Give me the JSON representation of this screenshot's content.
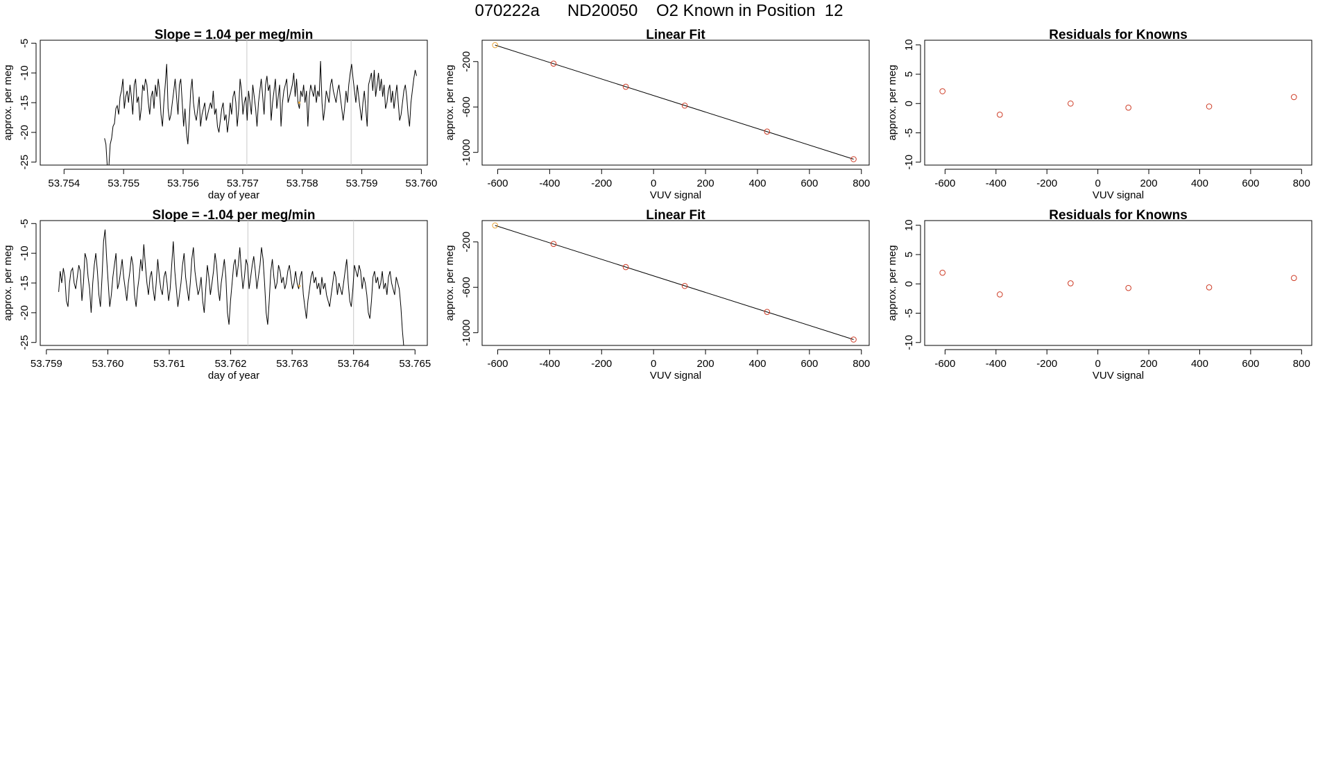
{
  "figure": {
    "title": "070222a      ND20050    O2 Known in Position  12"
  },
  "colors": {
    "line": "#000000",
    "box": "#000000",
    "marker": "#cd3a24",
    "first_marker": "#e8a33a",
    "vline": "#c8c8c8",
    "dot": "#f0b040"
  },
  "chart_data": [
    {
      "id": "ts1",
      "type": "line",
      "title": "Slope =  1.04  per meg/min",
      "xlabel": "day of year",
      "ylabel": "approx. per meg",
      "xlim": [
        53.7536,
        53.7601
      ],
      "ylim": [
        -25.5,
        -4.5
      ],
      "xticks": [
        53.754,
        53.755,
        53.756,
        53.757,
        53.758,
        53.759,
        53.76
      ],
      "xtick_labels": [
        "53.754",
        "53.755",
        "53.756",
        "53.757",
        "53.758",
        "53.759",
        "53.760"
      ],
      "yticks": [
        -5,
        -10,
        -15,
        -20,
        -25
      ],
      "ytick_labels": [
        "-5",
        "-10",
        "-15",
        "-20",
        "-25"
      ],
      "vlines": [
        53.75707,
        53.75882
      ],
      "highlight_point": [
        53.75795,
        -15
      ],
      "series": [
        {
          "name": "trace",
          "x_start": 53.75468,
          "x_end": 53.75992,
          "values": [
            -21,
            -22,
            -26,
            -26,
            -22,
            -21,
            -19,
            -18.5,
            -16,
            -15.5,
            -17,
            -14,
            -13,
            -11,
            -16,
            -14,
            -13,
            -15,
            -12,
            -14,
            -17,
            -12,
            -11,
            -15,
            -14,
            -18,
            -16,
            -12,
            -13,
            -11,
            -12,
            -15,
            -17,
            -14,
            -13,
            -16,
            -12,
            -14,
            -11,
            -13,
            -17,
            -19,
            -15,
            -12,
            -8.5,
            -16,
            -18,
            -17,
            -15,
            -13,
            -11,
            -14,
            -17,
            -12,
            -11,
            -15,
            -19,
            -16,
            -20,
            -22,
            -18,
            -13,
            -11,
            -15,
            -17,
            -18,
            -16,
            -14,
            -19,
            -17,
            -16,
            -15,
            -18,
            -17,
            -16,
            -15,
            -16,
            -13,
            -17,
            -16,
            -19,
            -20,
            -18,
            -16,
            -15,
            -18,
            -17,
            -20,
            -18,
            -15,
            -17,
            -14,
            -13,
            -15,
            -19,
            -16,
            -11,
            -13,
            -17,
            -15,
            -14,
            -18,
            -13,
            -15,
            -17,
            -12,
            -14,
            -16,
            -19,
            -15,
            -13,
            -11,
            -14,
            -17,
            -12,
            -10.5,
            -13,
            -12,
            -18,
            -15,
            -13,
            -11,
            -16,
            -14,
            -12,
            -19,
            -15,
            -13,
            -12,
            -11,
            -15,
            -14,
            -13,
            -12,
            -10,
            -14,
            -11,
            -15,
            -16,
            -13,
            -14,
            -12,
            -15,
            -13,
            -19,
            -14,
            -12,
            -13,
            -14,
            -12,
            -15,
            -13,
            -14,
            -8,
            -15,
            -18,
            -16,
            -13,
            -14,
            -15,
            -12,
            -11,
            -13,
            -14,
            -15,
            -13,
            -12,
            -14,
            -16,
            -18,
            -16,
            -13,
            -15,
            -12,
            -10,
            -8.5,
            -11,
            -13,
            -15,
            -12,
            -14,
            -16,
            -18,
            -15,
            -13,
            -16,
            -19,
            -12,
            -11,
            -10,
            -13,
            -9.5,
            -14,
            -12,
            -10,
            -13,
            -11,
            -14,
            -12,
            -16,
            -15,
            -13,
            -12,
            -15,
            -13,
            -16,
            -14,
            -12,
            -15,
            -18,
            -17,
            -15,
            -13,
            -12,
            -14,
            -17,
            -19,
            -15,
            -13,
            -11,
            -9.5,
            -10.5
          ]
        }
      ]
    },
    {
      "id": "fit1",
      "type": "scatter",
      "title": "Linear Fit",
      "xlabel": "VUV signal",
      "ylabel": "approx. per meg",
      "xlim": [
        -660,
        830
      ],
      "ylim": [
        -1112,
        -12
      ],
      "xticks": [
        -600,
        -400,
        -200,
        0,
        200,
        400,
        600,
        800
      ],
      "xtick_labels": [
        "-600",
        "-400",
        "-200",
        "0",
        "200",
        "400",
        "600",
        "800"
      ],
      "yticks": [
        -200,
        -600,
        -1000
      ],
      "ytick_labels": [
        "-200",
        "-600",
        "-1000"
      ],
      "fit_line": [
        [
          -610,
          -55
        ],
        [
          770,
          -1060
        ]
      ],
      "points": [
        [
          -610,
          -55
        ],
        [
          -385,
          -218
        ],
        [
          -107,
          -422
        ],
        [
          120,
          -588
        ],
        [
          437,
          -817
        ],
        [
          770,
          -1060
        ]
      ]
    },
    {
      "id": "res1",
      "type": "scatter",
      "title": "Residuals for Knowns",
      "xlabel": "VUV signal",
      "ylabel": "approx. per meg",
      "xlim": [
        -680,
        840
      ],
      "ylim": [
        -10.5,
        10.8
      ],
      "xticks": [
        -600,
        -400,
        -200,
        0,
        200,
        400,
        600,
        800
      ],
      "xtick_labels": [
        "-600",
        "-400",
        "-200",
        "0",
        "200",
        "400",
        "600",
        "800"
      ],
      "yticks": [
        10,
        5,
        0,
        -5,
        -10
      ],
      "ytick_labels": [
        "10",
        "5",
        "0",
        "-5",
        "-10"
      ],
      "points": [
        [
          -610,
          2.1
        ],
        [
          -385,
          -1.9
        ],
        [
          -107,
          0.0
        ],
        [
          120,
          -0.7
        ],
        [
          437,
          -0.5
        ],
        [
          770,
          1.1
        ]
      ]
    },
    {
      "id": "ts2",
      "type": "line",
      "title": "Slope =  -1.04  per meg/min",
      "xlabel": "day of year",
      "ylabel": "approx. per meg",
      "xlim": [
        53.7589,
        53.7652
      ],
      "ylim": [
        -25.5,
        -4.5
      ],
      "xticks": [
        53.759,
        53.76,
        53.761,
        53.762,
        53.763,
        53.764,
        53.765
      ],
      "xtick_labels": [
        "53.759",
        "53.760",
        "53.761",
        "53.762",
        "53.763",
        "53.764",
        "53.765"
      ],
      "yticks": [
        -5,
        -10,
        -15,
        -20,
        -25
      ],
      "ytick_labels": [
        "-5",
        "-10",
        "-15",
        "-20",
        "-25"
      ],
      "vlines": [
        53.76228,
        53.764
      ],
      "highlight_point": [
        53.76312,
        -15.5
      ],
      "series": [
        {
          "name": "trace",
          "x_start": 53.7592,
          "x_end": 53.76482,
          "values": [
            -16.5,
            -13,
            -15,
            -12.5,
            -14,
            -18,
            -19,
            -15,
            -13,
            -12.5,
            -15,
            -16,
            -14,
            -12,
            -13,
            -18,
            -15,
            -10,
            -11,
            -14,
            -16,
            -20,
            -15,
            -12,
            -10,
            -13,
            -17,
            -19,
            -14,
            -8,
            -6,
            -11,
            -15,
            -19,
            -17,
            -14,
            -12,
            -10,
            -16,
            -15,
            -13,
            -11,
            -14,
            -16,
            -18,
            -15,
            -13,
            -10.5,
            -12,
            -17,
            -19,
            -16,
            -14,
            -11,
            -13,
            -8.5,
            -12,
            -15,
            -17,
            -14,
            -13,
            -16,
            -18,
            -15,
            -11,
            -14,
            -16,
            -17,
            -14,
            -13,
            -15,
            -18,
            -16,
            -12,
            -8,
            -13,
            -16,
            -19,
            -17,
            -15,
            -12,
            -10,
            -14,
            -16,
            -18,
            -15,
            -11,
            -9,
            -13,
            -15,
            -17,
            -16,
            -14,
            -18,
            -20,
            -16,
            -12,
            -14,
            -17,
            -15,
            -13,
            -10,
            -12,
            -16,
            -18,
            -15,
            -13,
            -11,
            -14,
            -20,
            -22,
            -18,
            -15,
            -12,
            -11,
            -14,
            -12,
            -9,
            -13,
            -16,
            -14,
            -11,
            -12,
            -16,
            -14,
            -12,
            -10.5,
            -13,
            -16,
            -14,
            -12,
            -9,
            -11,
            -15,
            -20,
            -22,
            -18,
            -13,
            -11,
            -14,
            -16,
            -15,
            -12,
            -13,
            -15,
            -14,
            -16,
            -15,
            -13,
            -12,
            -14,
            -16,
            -15,
            -13,
            -15,
            -16,
            -14,
            -13,
            -17,
            -19,
            -21,
            -18,
            -16,
            -14,
            -13,
            -15,
            -14,
            -16,
            -15,
            -17,
            -14,
            -16,
            -15,
            -17,
            -18,
            -19,
            -17,
            -15,
            -13,
            -14,
            -17,
            -15,
            -16,
            -17,
            -15,
            -13,
            -11,
            -15,
            -18,
            -19,
            -16,
            -12,
            -13,
            -14,
            -12,
            -13,
            -16,
            -14,
            -15,
            -17,
            -20,
            -21,
            -18,
            -14,
            -13,
            -15,
            -14,
            -16,
            -15,
            -13,
            -16,
            -15,
            -17,
            -14,
            -13,
            -15,
            -16,
            -17,
            -14,
            -15,
            -16,
            -19,
            -23,
            -26
          ]
        }
      ]
    },
    {
      "id": "fit2",
      "type": "scatter",
      "title": "Linear Fit",
      "xlabel": "VUV signal",
      "ylabel": "approx. per meg",
      "xlim": [
        -660,
        830
      ],
      "ylim": [
        -1112,
        -12
      ],
      "xticks": [
        -600,
        -400,
        -200,
        0,
        200,
        400,
        600,
        800
      ],
      "xtick_labels": [
        "-600",
        "-400",
        "-200",
        "0",
        "200",
        "400",
        "600",
        "800"
      ],
      "yticks": [
        -200,
        -600,
        -1000
      ],
      "ytick_labels": [
        "-200",
        "-600",
        "-1000"
      ],
      "fit_line": [
        [
          -610,
          -55
        ],
        [
          770,
          -1060
        ]
      ],
      "points": [
        [
          -610,
          -55
        ],
        [
          -385,
          -218
        ],
        [
          -107,
          -422
        ],
        [
          120,
          -588
        ],
        [
          437,
          -817
        ],
        [
          770,
          -1060
        ]
      ]
    },
    {
      "id": "res2",
      "type": "scatter",
      "title": "Residuals for Knowns",
      "xlabel": "VUV signal",
      "ylabel": "approx. per meg",
      "xlim": [
        -680,
        840
      ],
      "ylim": [
        -10.5,
        10.8
      ],
      "xticks": [
        -600,
        -400,
        -200,
        0,
        200,
        400,
        600,
        800
      ],
      "xtick_labels": [
        "-600",
        "-400",
        "-200",
        "0",
        "200",
        "400",
        "600",
        "800"
      ],
      "yticks": [
        10,
        5,
        0,
        -5,
        -10
      ],
      "ytick_labels": [
        "10",
        "5",
        "0",
        "-5",
        "-10"
      ],
      "points": [
        [
          -610,
          1.9
        ],
        [
          -385,
          -1.8
        ],
        [
          -107,
          0.1
        ],
        [
          120,
          -0.7
        ],
        [
          437,
          -0.6
        ],
        [
          770,
          1.0
        ]
      ]
    }
  ]
}
